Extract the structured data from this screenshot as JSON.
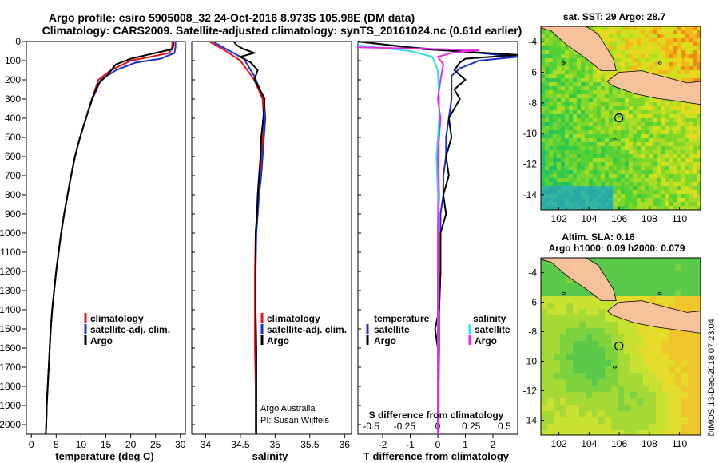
{
  "header": {
    "line1": "Argo profile: csiro 5905008_32 24-Oct-2016 8.973S 105.98E (DM data)",
    "line2": "Climatology: CARS2009. Satellite-adjusted climatology: synTS_20161024.nc (0.61d earlier)"
  },
  "colors": {
    "climatology": "#e8141a",
    "satellite": "#1a2fd6",
    "argo": "#000000",
    "sat_salinity": "#35e0e6",
    "argo_salinity": "#e62ee6",
    "land": "#f7c29b"
  },
  "chart_data": [
    {
      "id": "temperature",
      "type": "line",
      "xlabel": "temperature (deg C)",
      "ylabel": "",
      "xlim": [
        -1,
        31
      ],
      "ylim": [
        2050,
        0
      ],
      "xticks": [
        0,
        5,
        10,
        15,
        20,
        25,
        30
      ],
      "yticks": [
        0,
        100,
        200,
        300,
        400,
        500,
        600,
        700,
        800,
        900,
        1000,
        1100,
        1200,
        1300,
        1400,
        1500,
        1600,
        1700,
        1800,
        1900,
        2000
      ],
      "legend": [
        "climatology",
        "satellite-adj. clim.",
        "Argo"
      ],
      "series": [
        {
          "name": "climatology",
          "color": "red",
          "points": [
            [
              28.4,
              0
            ],
            [
              28.3,
              30
            ],
            [
              27.8,
              60
            ],
            [
              24,
              80
            ],
            [
              20,
              100
            ],
            [
              16,
              150
            ],
            [
              13.5,
              200
            ],
            [
              12.2,
              300
            ],
            [
              11,
              400
            ],
            [
              9.8,
              500
            ],
            [
              8.8,
              600
            ],
            [
              8,
              700
            ],
            [
              7.3,
              800
            ],
            [
              6.6,
              900
            ],
            [
              6,
              1000
            ],
            [
              5.5,
              1100
            ],
            [
              5,
              1200
            ],
            [
              4.6,
              1300
            ],
            [
              4.2,
              1400
            ],
            [
              3.9,
              1500
            ],
            [
              3.7,
              1600
            ],
            [
              3.5,
              1700
            ],
            [
              3.3,
              1800
            ],
            [
              3.1,
              1900
            ],
            [
              3,
              2000
            ],
            [
              2.9,
              2050
            ]
          ]
        },
        {
          "name": "satellite-adj. clim.",
          "color": "blue",
          "points": [
            [
              29,
              0
            ],
            [
              29,
              30
            ],
            [
              28.8,
              60
            ],
            [
              26,
              90
            ],
            [
              21,
              110
            ],
            [
              17,
              150
            ],
            [
              14,
              200
            ],
            [
              12.3,
              300
            ],
            [
              11,
              400
            ],
            [
              9.8,
              500
            ],
            [
              8.8,
              600
            ],
            [
              8,
              700
            ],
            [
              7.3,
              800
            ],
            [
              6.6,
              900
            ],
            [
              6,
              1000
            ],
            [
              5.5,
              1100
            ],
            [
              5,
              1200
            ],
            [
              4.6,
              1300
            ],
            [
              4.2,
              1400
            ],
            [
              3.9,
              1500
            ],
            [
              3.7,
              1600
            ],
            [
              3.5,
              1700
            ],
            [
              3.3,
              1800
            ],
            [
              3.1,
              1900
            ],
            [
              3,
              2000
            ],
            [
              2.9,
              2050
            ]
          ]
        },
        {
          "name": "Argo",
          "color": "black",
          "points": [
            [
              28.6,
              0
            ],
            [
              28.6,
              20
            ],
            [
              28.4,
              40
            ],
            [
              25,
              60
            ],
            [
              20,
              90
            ],
            [
              17,
              120
            ],
            [
              15.5,
              170
            ],
            [
              13.5,
              220
            ],
            [
              12.2,
              300
            ],
            [
              11,
              400
            ],
            [
              9.8,
              500
            ],
            [
              8.8,
              600
            ],
            [
              8,
              700
            ],
            [
              7.3,
              800
            ],
            [
              6.6,
              900
            ],
            [
              6,
              1000
            ],
            [
              5.5,
              1100
            ],
            [
              5,
              1200
            ],
            [
              4.6,
              1300
            ],
            [
              4.2,
              1400
            ],
            [
              3.9,
              1500
            ],
            [
              3.7,
              1600
            ],
            [
              3.5,
              1700
            ],
            [
              3.3,
              1800
            ],
            [
              3.1,
              1900
            ],
            [
              3,
              2000
            ],
            [
              2.9,
              2050
            ]
          ]
        }
      ]
    },
    {
      "id": "salinity",
      "type": "line",
      "xlabel": "salinity",
      "xlim": [
        33.8,
        36.1
      ],
      "ylim": [
        2050,
        0
      ],
      "xticks": [
        34,
        34.5,
        35,
        35.5,
        36
      ],
      "legend": [
        "climatology",
        "satellite-adj. clim.",
        "Argo"
      ],
      "credit": [
        "Argo Australia",
        "PI: Susan Wijffels"
      ],
      "series": [
        {
          "name": "climatology",
          "color": "red",
          "points": [
            [
              34.05,
              0
            ],
            [
              34.25,
              40
            ],
            [
              34.5,
              100
            ],
            [
              34.7,
              200
            ],
            [
              34.82,
              300
            ],
            [
              34.84,
              400
            ],
            [
              34.82,
              500
            ],
            [
              34.8,
              600
            ],
            [
              34.78,
              700
            ],
            [
              34.76,
              800
            ],
            [
              34.74,
              900
            ],
            [
              34.72,
              1000
            ],
            [
              34.71,
              1200
            ],
            [
              34.71,
              1400
            ],
            [
              34.71,
              1600
            ],
            [
              34.72,
              1800
            ],
            [
              34.72,
              2050
            ]
          ]
        },
        {
          "name": "satellite-adj. clim.",
          "color": "blue",
          "points": [
            [
              34.1,
              0
            ],
            [
              34.3,
              40
            ],
            [
              34.55,
              90
            ],
            [
              34.7,
              180
            ],
            [
              34.84,
              300
            ],
            [
              34.86,
              400
            ],
            [
              34.84,
              500
            ],
            [
              34.82,
              600
            ],
            [
              34.8,
              700
            ],
            [
              34.77,
              800
            ],
            [
              34.75,
              900
            ],
            [
              34.73,
              1000
            ],
            [
              34.72,
              1200
            ],
            [
              34.72,
              1400
            ],
            [
              34.72,
              1600
            ],
            [
              34.72,
              1800
            ],
            [
              34.72,
              2050
            ]
          ]
        },
        {
          "name": "Argo",
          "color": "black",
          "points": [
            [
              34.4,
              0
            ],
            [
              34.45,
              20
            ],
            [
              34.55,
              40
            ],
            [
              34.7,
              60
            ],
            [
              34.5,
              80
            ],
            [
              34.65,
              110
            ],
            [
              34.75,
              150
            ],
            [
              34.7,
              200
            ],
            [
              34.78,
              250
            ],
            [
              34.85,
              300
            ],
            [
              34.83,
              400
            ],
            [
              34.8,
              500
            ],
            [
              34.79,
              600
            ],
            [
              34.77,
              700
            ],
            [
              34.75,
              800
            ],
            [
              34.74,
              900
            ],
            [
              34.72,
              1000
            ],
            [
              34.72,
              1200
            ],
            [
              34.72,
              1400
            ],
            [
              34.73,
              1600
            ],
            [
              34.73,
              1800
            ],
            [
              34.73,
              2050
            ]
          ]
        }
      ]
    },
    {
      "id": "difference",
      "type": "line",
      "xlabel": "T difference from climatology",
      "xlabel_top": "S difference from climatology",
      "xlim": [
        -2.9,
        2.9
      ],
      "ylim": [
        2050,
        0
      ],
      "xticks": [
        -2,
        -1,
        0,
        1,
        2
      ],
      "xticks_top": [
        -0.5,
        -0.25,
        0,
        0.25,
        0.5
      ],
      "xticklabels_top": [
        "-0.5",
        "-0.25",
        "0",
        "0.25",
        "0.5"
      ],
      "legend_left_title": "temperature",
      "legend_right_title": "salinity",
      "legend_left": [
        "satellite",
        "Argo"
      ],
      "legend_right": [
        "satellite",
        "Argo"
      ],
      "series": [
        {
          "name": "T satellite",
          "color": "blue",
          "points": [
            [
              -2.9,
              0
            ],
            [
              -1,
              30
            ],
            [
              1.5,
              60
            ],
            [
              2.9,
              80
            ],
            [
              1.5,
              100
            ],
            [
              0.8,
              140
            ],
            [
              0.5,
              180
            ],
            [
              0.5,
              300
            ],
            [
              0.4,
              400
            ],
            [
              0.3,
              500
            ],
            [
              0.3,
              600
            ],
            [
              0.2,
              700
            ],
            [
              0.2,
              800
            ],
            [
              0.1,
              900
            ],
            [
              0.1,
              1000
            ],
            [
              0.1,
              1200
            ],
            [
              0.05,
              1400
            ],
            [
              0.05,
              1600
            ],
            [
              0.03,
              1800
            ],
            [
              0.02,
              2050
            ]
          ]
        },
        {
          "name": "T Argo",
          "color": "black",
          "points": [
            [
              -2.9,
              0
            ],
            [
              -0.5,
              40
            ],
            [
              2.9,
              70
            ],
            [
              1,
              90
            ],
            [
              0.8,
              110
            ],
            [
              0.6,
              150
            ],
            [
              1,
              200
            ],
            [
              0.6,
              250
            ],
            [
              0.8,
              300
            ],
            [
              0.4,
              400
            ],
            [
              0.5,
              500
            ],
            [
              0.3,
              600
            ],
            [
              0.4,
              700
            ],
            [
              0.2,
              800
            ],
            [
              0.3,
              900
            ],
            [
              0.1,
              1000
            ],
            [
              0.1,
              1200
            ],
            [
              0.05,
              1400
            ],
            [
              -0.1,
              1500
            ],
            [
              0.0,
              1600
            ],
            [
              0.02,
              1800
            ],
            [
              0.02,
              2050
            ]
          ]
        },
        {
          "name": "S satellite",
          "color": "cyan",
          "points": [
            [
              -2.9,
              20
            ],
            [
              -1,
              50
            ],
            [
              -0.2,
              80
            ],
            [
              0,
              150
            ],
            [
              0.05,
              300
            ],
            [
              0.05,
              400
            ],
            [
              0.0,
              500
            ],
            [
              -0.05,
              600
            ],
            [
              0.0,
              800
            ],
            [
              0.0,
              1000
            ],
            [
              0.0,
              1200
            ],
            [
              0.0,
              1400
            ],
            [
              0.0,
              1600
            ],
            [
              0.0,
              1800
            ],
            [
              0.0,
              2050
            ]
          ]
        },
        {
          "name": "S Argo",
          "color": "magenta",
          "points": [
            [
              -2.9,
              30
            ],
            [
              1.5,
              45
            ],
            [
              0.5,
              60
            ],
            [
              0,
              80
            ],
            [
              0.2,
              120
            ],
            [
              0.1,
              200
            ],
            [
              0.0,
              300
            ],
            [
              0.1,
              400
            ],
            [
              0.05,
              500
            ],
            [
              0.0,
              600
            ],
            [
              0.05,
              800
            ],
            [
              0.0,
              1000
            ],
            [
              0.0,
              1200
            ],
            [
              0.0,
              1400
            ],
            [
              0.0,
              1600
            ],
            [
              0.0,
              1800
            ],
            [
              0.0,
              2050
            ]
          ]
        }
      ]
    },
    {
      "id": "map_sst",
      "type": "heatmap",
      "title": "sat. SST: 29 Argo: 28.7",
      "xticks": [
        102,
        104,
        106,
        108,
        110
      ],
      "yticks": [
        -4,
        -6,
        -8,
        -10,
        -12,
        -14
      ],
      "xlim": [
        100.8,
        111.4
      ],
      "ylim": [
        -15,
        -3
      ],
      "marker": {
        "lon": 105.98,
        "lat": -8.973
      }
    },
    {
      "id": "map_sla",
      "type": "heatmap",
      "title1": "Altim. SLA: 0.16",
      "title2": "Argo h1000: 0.09 h2000: 0.079",
      "xticks": [
        102,
        104,
        106,
        108,
        110
      ],
      "yticks": [
        -4,
        -6,
        -8,
        -10,
        -12,
        -14
      ],
      "xlim": [
        100.8,
        111.4
      ],
      "ylim": [
        -15,
        -3
      ],
      "marker": {
        "lon": 105.98,
        "lat": -8.973
      }
    }
  ],
  "footer": {
    "vertical_credit": "©IMOS 13-Dec-2018 07:23:04"
  }
}
